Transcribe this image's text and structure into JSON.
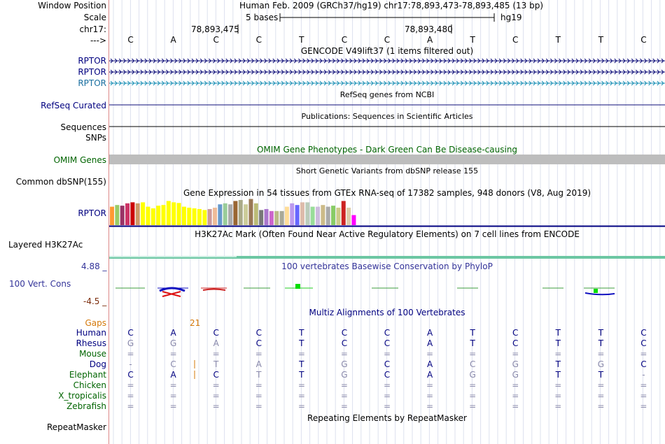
{
  "header": {
    "window_position_label": "Window Position",
    "window_position_value": "Human Feb. 2009 (GRCh37/hg19)   chr17:78,893,473-78,893,485 (13 bp)",
    "scale_label": "Scale",
    "scale_text": "5 bases",
    "scale_assembly": "hg19",
    "chrom_label": "chr17:",
    "pos_label_1": "78,893,475",
    "pos_label_2": "78,893,480",
    "strand_label": "--->"
  },
  "sequence": [
    "C",
    "A",
    "C",
    "C",
    "T",
    "C",
    "C",
    "A",
    "T",
    "C",
    "T",
    "T",
    "C"
  ],
  "tracks": {
    "gencode_title": "GENCODE V49lift37 (1 items filtered out)",
    "gencode_labels": [
      "RPTOR",
      "RPTOR",
      "RPTOR"
    ],
    "refseq_title": "RefSeq genes from NCBI",
    "refseq_label": "RefSeq Curated",
    "pubs_title": "Publications: Sequences in Scientific Articles",
    "sequences_label": "Sequences",
    "snps_label": "SNPs",
    "omim_title": "OMIM Gene Phenotypes - Dark Green Can Be Disease-causing",
    "omim_label": "OMIM Genes",
    "dbsnp_title": "Short Genetic Variants from dbSNP release 155",
    "dbsnp_label": "Common dbSNP(155)",
    "gtex_title": "Gene Expression in 54 tissues from GTEx RNA-seq of 17382 samples, 948 donors (V8, Aug 2019)",
    "gtex_label": "RPTOR",
    "h3k_title": "H3K27Ac Mark (Often Found Near Active Regulatory Elements) on 7 cell lines from ENCODE",
    "h3k_label": "Layered H3K27Ac",
    "cons_max": "4.88 _",
    "cons_title": "100 vertebrates Basewise Conservation by PhyloP",
    "cons_label": "100 Vert. Cons",
    "cons_min": "-4.5 _",
    "multiz_title": "Multiz Alignments of 100 Vertebrates",
    "gaps_label": "Gaps",
    "gaps_value": "21",
    "rmsk_label": "RepeatMasker",
    "rmsk_title": "Repeating Elements by RepeatMasker"
  },
  "gtex_colors": [
    "#ff9933",
    "#99cc66",
    "#993366",
    "#cc3366",
    "#cc0000",
    "#cc9966",
    "#ffff00",
    "#ffff00",
    "#ffff00",
    "#ffff00",
    "#ffff00",
    "#ffff00",
    "#ffff00",
    "#ffff00",
    "#ffff00",
    "#ffff00",
    "#ffff00",
    "#ffff00",
    "#ffff00",
    "#cc9999",
    "#eebb99",
    "#6699cc",
    "#99cc99",
    "#aaaaaa",
    "#996633",
    "#aaaa88",
    "#cccc99",
    "#997755",
    "#bbbb77",
    "#777777",
    "#aa77cc",
    "#cc66cc",
    "#bbbb88",
    "#aaaa99",
    "#ffdd99",
    "#bb99ee",
    "#6666ff",
    "#ddbbaa",
    "#bbccbb",
    "#99dd99",
    "#ccbbdd",
    "#ccbb88",
    "#aaaaaa",
    "#88cc66",
    "#cccc88",
    "#cc2222",
    "#ddccaa",
    "#ff00ff"
  ],
  "gtex_values": [
    0.55,
    0.6,
    0.58,
    0.65,
    0.68,
    0.65,
    0.68,
    0.55,
    0.5,
    0.58,
    0.6,
    0.72,
    0.68,
    0.66,
    0.55,
    0.52,
    0.5,
    0.48,
    0.45,
    0.48,
    0.52,
    0.62,
    0.65,
    0.62,
    0.72,
    0.75,
    0.62,
    0.78,
    0.65,
    0.45,
    0.48,
    0.42,
    0.42,
    0.42,
    0.55,
    0.65,
    0.6,
    0.68,
    0.68,
    0.55,
    0.55,
    0.6,
    0.55,
    0.58,
    0.52,
    0.72,
    0.52,
    0.3
  ],
  "alignment": {
    "species": [
      "Human",
      "Rhesus",
      "Mouse",
      "Dog",
      "Elephant",
      "Chicken",
      "X_tropicalis",
      "Zebrafish"
    ],
    "species_colors": [
      "#000080",
      "#000080",
      "#006400",
      "#000080",
      "#006400",
      "#006400",
      "#006400",
      "#006400"
    ],
    "rows": [
      [
        "C",
        "A",
        "C",
        "C",
        "T",
        "C",
        "C",
        "A",
        "T",
        "C",
        "T",
        "T",
        "C"
      ],
      [
        "G",
        "G",
        "A",
        "C",
        "T",
        "C",
        "C",
        "A",
        "T",
        "C",
        "T",
        "T",
        "C"
      ],
      [
        "=",
        "=",
        "=",
        "=",
        "=",
        "=",
        "=",
        "=",
        "=",
        "=",
        "=",
        "=",
        "="
      ],
      [
        "-",
        "C",
        "T",
        "A",
        "T",
        "G",
        "C",
        "A",
        "C",
        "G",
        "T",
        "G",
        "C"
      ],
      [
        "C",
        "A",
        "C",
        "T",
        "T",
        "G",
        "C",
        "A",
        "G",
        "G",
        "T",
        "T",
        "-"
      ],
      [
        "=",
        "=",
        "=",
        "=",
        "=",
        "=",
        "=",
        "=",
        "=",
        "=",
        "=",
        "=",
        "="
      ],
      [
        "=",
        "=",
        "=",
        "=",
        "=",
        "=",
        "=",
        "=",
        "=",
        "=",
        "=",
        "=",
        "="
      ],
      [
        "=",
        "=",
        "=",
        "=",
        "=",
        "=",
        "=",
        "=",
        "=",
        "=",
        "=",
        "=",
        "="
      ]
    ],
    "row_colors": [
      [
        "#000080",
        "#000080",
        "#000080",
        "#000080",
        "#000080",
        "#000080",
        "#000080",
        "#000080",
        "#000080",
        "#000080",
        "#000080",
        "#000080",
        "#000080"
      ],
      [
        "#8888aa",
        "#8888aa",
        "#8888aa",
        "#000080",
        "#000080",
        "#000080",
        "#000080",
        "#000080",
        "#000080",
        "#000080",
        "#000080",
        "#000080",
        "#000080"
      ],
      [
        "#8888aa",
        "#8888aa",
        "#8888aa",
        "#8888aa",
        "#8888aa",
        "#8888aa",
        "#8888aa",
        "#8888aa",
        "#8888aa",
        "#8888aa",
        "#8888aa",
        "#8888aa",
        "#8888aa"
      ],
      [
        "#8888aa",
        "#8888aa",
        "#8888aa",
        "#8888aa",
        "#000080",
        "#8888aa",
        "#000080",
        "#000080",
        "#8888aa",
        "#8888aa",
        "#000080",
        "#8888aa",
        "#000080"
      ],
      [
        "#000080",
        "#000080",
        "#000080",
        "#8888aa",
        "#000080",
        "#8888aa",
        "#000080",
        "#000080",
        "#8888aa",
        "#8888aa",
        "#000080",
        "#000080",
        "#8888aa"
      ],
      [
        "#8888aa",
        "#8888aa",
        "#8888aa",
        "#8888aa",
        "#8888aa",
        "#8888aa",
        "#8888aa",
        "#8888aa",
        "#8888aa",
        "#8888aa",
        "#8888aa",
        "#8888aa",
        "#8888aa"
      ],
      [
        "#8888aa",
        "#8888aa",
        "#8888aa",
        "#8888aa",
        "#8888aa",
        "#8888aa",
        "#8888aa",
        "#8888aa",
        "#8888aa",
        "#8888aa",
        "#8888aa",
        "#8888aa",
        "#8888aa"
      ],
      [
        "#8888aa",
        "#8888aa",
        "#8888aa",
        "#8888aa",
        "#8888aa",
        "#8888aa",
        "#8888aa",
        "#8888aa",
        "#8888aa",
        "#8888aa",
        "#8888aa",
        "#8888aa",
        "#8888aa"
      ]
    ]
  },
  "colors": {
    "gencode_dark": "#0c0c78",
    "gencode_light": "#1a8fb5",
    "omim_bar": "#bdbdbd",
    "h3k_line": "#6cc7a3",
    "divider": "#dd8888"
  }
}
